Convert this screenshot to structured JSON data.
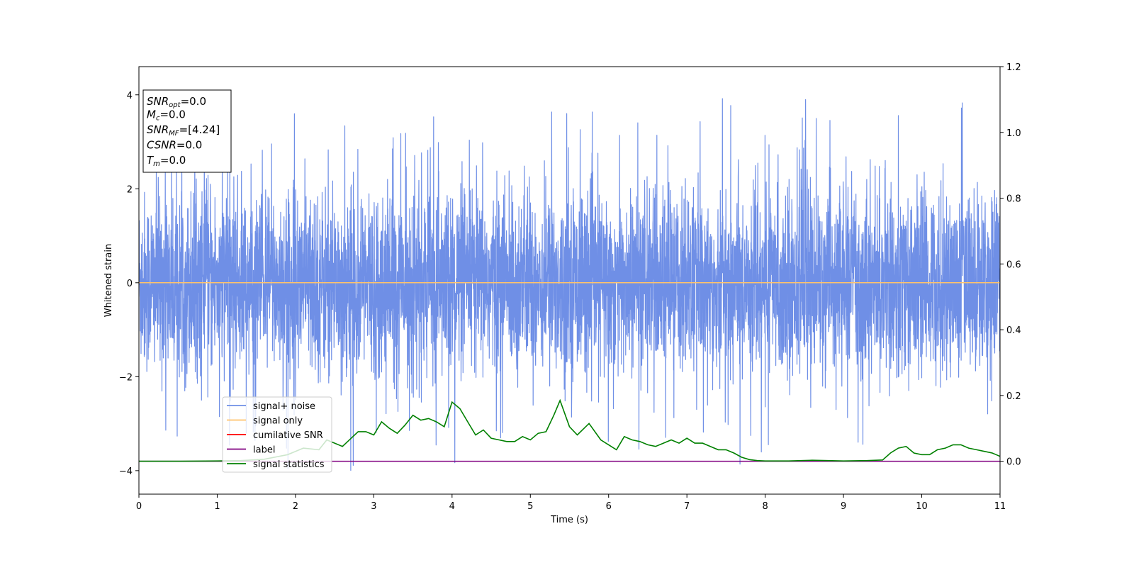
{
  "chart_data": {
    "type": "line",
    "xlabel": "Time (s)",
    "ylabel": "Whitened strain",
    "xlim": [
      0,
      11
    ],
    "ylim_left": [
      -4.5,
      4.6
    ],
    "ylim_right": [
      -0.1,
      1.2
    ],
    "x_ticks": [
      "0",
      "1",
      "2",
      "3",
      "4",
      "5",
      "6",
      "7",
      "8",
      "9",
      "10",
      "11"
    ],
    "y_ticks_left": [
      "−4",
      "−2",
      "0",
      "2",
      "4"
    ],
    "y_ticks_right": [
      "0.0",
      "0.2",
      "0.4",
      "0.6",
      "0.8",
      "1.0",
      "1.2"
    ],
    "legend": {
      "placement": "lower-left",
      "entries": [
        {
          "label": "signal+ noise",
          "color": "#6f8fe6"
        },
        {
          "label": "signal only",
          "color": "#ffc36b"
        },
        {
          "label": "cumilative SNR",
          "color": "#ff0000"
        },
        {
          "label": "label",
          "color": "#800080"
        },
        {
          "label": "signal statistics",
          "color": "#008000"
        }
      ]
    },
    "series": [
      {
        "name": "signal+ noise",
        "axis": "left",
        "description_level": "whitened noise, amplitude roughly ±2 with spikes to ±4",
        "amplitude_core": 1.8,
        "amplitude_peak": 4.0
      },
      {
        "name": "signal only",
        "axis": "left",
        "x": [
          0,
          11
        ],
        "y": [
          0,
          0
        ]
      },
      {
        "name": "label",
        "axis": "right",
        "x": [
          0,
          11
        ],
        "y": [
          0,
          0
        ]
      },
      {
        "name": "signal statistics",
        "axis": "right",
        "x": [
          0,
          0.5,
          1.0,
          1.3,
          1.6,
          1.9,
          2.1,
          2.3,
          2.4,
          2.6,
          2.8,
          2.9,
          3.0,
          3.1,
          3.2,
          3.3,
          3.4,
          3.5,
          3.6,
          3.7,
          3.8,
          3.9,
          4.0,
          4.1,
          4.2,
          4.3,
          4.4,
          4.5,
          4.6,
          4.7,
          4.8,
          4.9,
          5.0,
          5.1,
          5.2,
          5.3,
          5.38,
          5.5,
          5.6,
          5.75,
          5.9,
          6.0,
          6.1,
          6.2,
          6.3,
          6.4,
          6.5,
          6.6,
          6.7,
          6.8,
          6.9,
          7.0,
          7.1,
          7.2,
          7.3,
          7.4,
          7.5,
          7.6,
          7.7,
          7.8,
          7.9,
          8.0,
          8.3,
          8.6,
          9.0,
          9.3,
          9.5,
          9.6,
          9.7,
          9.8,
          9.9,
          10.0,
          10.1,
          10.2,
          10.3,
          10.4,
          10.5,
          10.6,
          10.7,
          10.8,
          10.9,
          11.0
        ],
        "y": [
          0.0,
          0.0,
          0.001,
          0.002,
          0.006,
          0.02,
          0.04,
          0.035,
          0.065,
          0.045,
          0.09,
          0.09,
          0.08,
          0.12,
          0.1,
          0.085,
          0.11,
          0.14,
          0.125,
          0.13,
          0.12,
          0.105,
          0.18,
          0.16,
          0.12,
          0.08,
          0.095,
          0.07,
          0.065,
          0.06,
          0.06,
          0.075,
          0.065,
          0.085,
          0.09,
          0.14,
          0.185,
          0.105,
          0.08,
          0.115,
          0.065,
          0.05,
          0.035,
          0.075,
          0.065,
          0.06,
          0.05,
          0.045,
          0.055,
          0.065,
          0.055,
          0.07,
          0.055,
          0.055,
          0.045,
          0.035,
          0.035,
          0.025,
          0.012,
          0.005,
          0.002,
          0.001,
          0.001,
          0.003,
          0.001,
          0.002,
          0.004,
          0.025,
          0.04,
          0.045,
          0.025,
          0.02,
          0.02,
          0.035,
          0.04,
          0.05,
          0.05,
          0.04,
          0.035,
          0.03,
          0.025,
          0.015
        ]
      }
    ],
    "info_box": {
      "lines": [
        {
          "main": "SNR",
          "sub": "opt",
          "value": "=0.0"
        },
        {
          "main": "M",
          "sub": "c",
          "value": "=0.0"
        },
        {
          "main": "SNR",
          "sub": "MF",
          "value": "=[4.24]"
        },
        {
          "main": "CSNR",
          "sub": "",
          "value": "=0.0"
        },
        {
          "main": "T",
          "sub": "m",
          "value": "=0.0"
        }
      ]
    },
    "colors": {
      "noise": "#6f8fe6",
      "signal": "#ffc36b",
      "cumulative": "#ff0000",
      "label": "#800080",
      "statistics": "#008000"
    }
  }
}
